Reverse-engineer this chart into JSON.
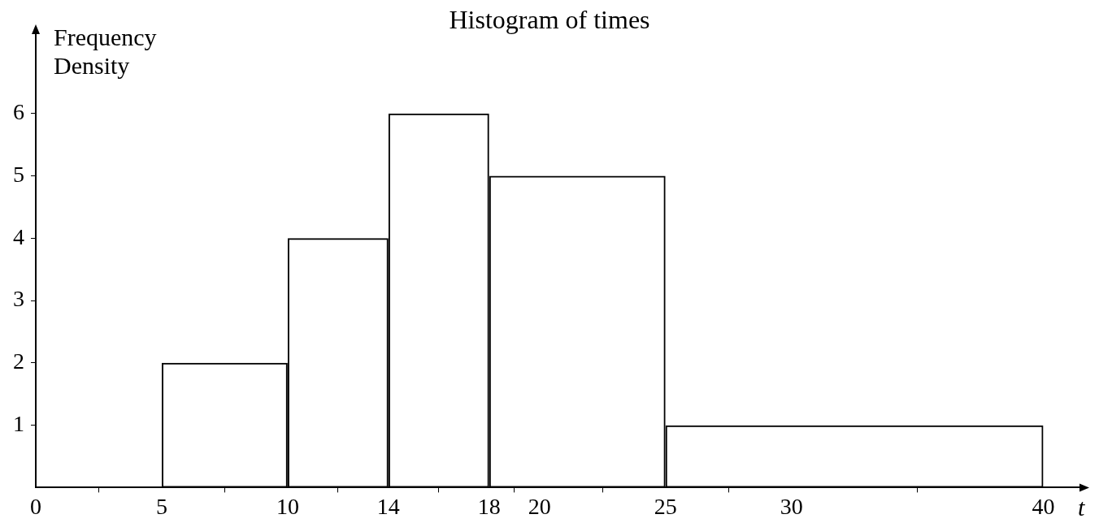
{
  "chart_data": {
    "type": "histogram",
    "title": "Histogram of times",
    "xlabel": "t",
    "ylabel": "Frequency Density",
    "bins": [
      5,
      10,
      14,
      18,
      25,
      40
    ],
    "values": [
      2,
      4,
      6,
      5,
      1
    ],
    "color": "#000000",
    "xlim": [
      0,
      41.5
    ],
    "xticks": [
      0,
      5,
      10,
      14,
      18,
      20,
      25,
      30,
      40
    ],
    "ylim": [
      0,
      7.3
    ],
    "yticks": [
      1,
      2,
      3,
      4,
      5,
      6
    ],
    "grid": false,
    "legend": false
  }
}
